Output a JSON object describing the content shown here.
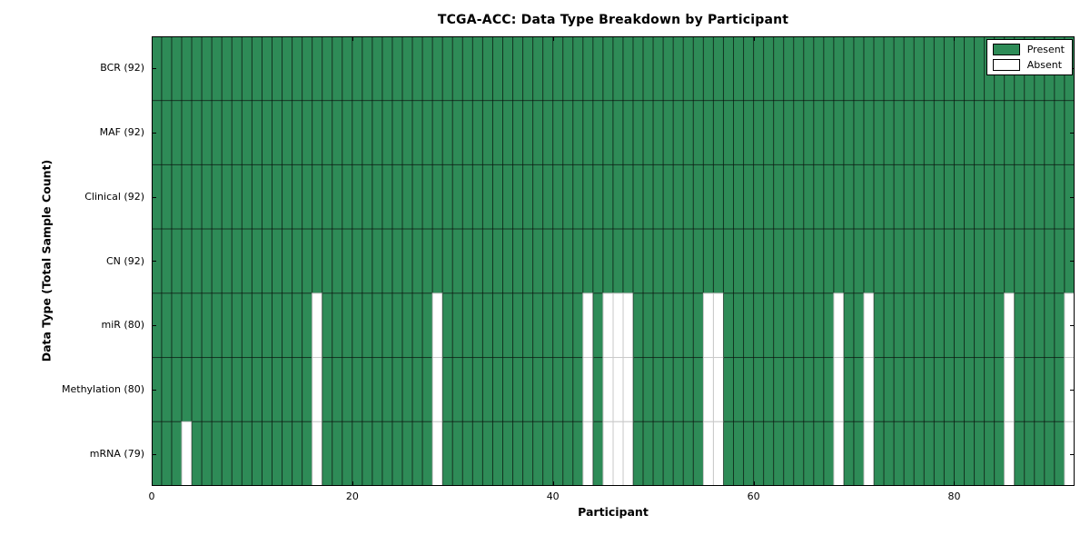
{
  "chart_data": {
    "type": "heatmap",
    "title": "TCGA-ACC: Data Type Breakdown by Participant",
    "xlabel": "Participant",
    "ylabel": "Data Type (Total Sample Count)",
    "x_range": [
      0,
      92
    ],
    "n_participants": 92,
    "x_ticks": [
      0,
      20,
      40,
      60,
      80
    ],
    "grid": "cell-borders",
    "colors": {
      "present_fill": "#2e8b57",
      "absent_fill": "#ffffff",
      "present_edge": "rgba(0,0,0,0.5)",
      "absent_edge": "#c9c9c9",
      "spine": "#000000"
    },
    "legend": {
      "position": "upper right",
      "entries": [
        {
          "label": "Present",
          "color": "#2e8b57"
        },
        {
          "label": "Absent",
          "color": "#ffffff"
        }
      ]
    },
    "rows": [
      {
        "label": "BCR (92)",
        "present_count": 92,
        "absent_participants": []
      },
      {
        "label": "MAF (92)",
        "present_count": 92,
        "absent_participants": []
      },
      {
        "label": "Clinical (92)",
        "present_count": 92,
        "absent_participants": []
      },
      {
        "label": "CN (92)",
        "present_count": 92,
        "absent_participants": []
      },
      {
        "label": "miR (80)",
        "present_count": 80,
        "absent_participants": [
          16,
          28,
          43,
          45,
          46,
          47,
          55,
          56,
          68,
          71,
          85,
          91
        ]
      },
      {
        "label": "Methylation (80)",
        "present_count": 80,
        "absent_participants": [
          16,
          28,
          43,
          45,
          46,
          47,
          55,
          56,
          68,
          71,
          85,
          91
        ]
      },
      {
        "label": "mRNA (79)",
        "present_count": 79,
        "absent_participants": [
          3,
          16,
          28,
          43,
          45,
          46,
          47,
          55,
          56,
          68,
          71,
          85,
          91
        ]
      }
    ]
  }
}
